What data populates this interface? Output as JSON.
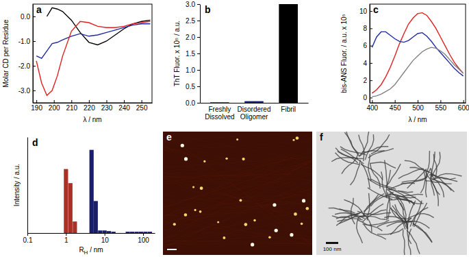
{
  "chart_data": [
    {
      "type": "line",
      "title": "a",
      "x_label": "λ / nm",
      "y_label": "Molar CD per Residue",
      "x": [
        190,
        193,
        196,
        199,
        202,
        205,
        210,
        215,
        220,
        225,
        230,
        235,
        240,
        245,
        250,
        255
      ],
      "series": [
        {
          "color": "#000000",
          "values": [
            null,
            null,
            0.0,
            0.35,
            0.3,
            0.2,
            -0.15,
            -0.65,
            -1.05,
            -1.15,
            -1.0,
            -0.75,
            -0.5,
            -0.3,
            -0.2,
            -0.15
          ]
        },
        {
          "color": "#1f2aa0",
          "values": [
            -1.6,
            -1.7,
            -1.4,
            -1.1,
            -1.05,
            -0.95,
            -0.8,
            -0.7,
            -0.8,
            -0.75,
            -0.65,
            -0.55,
            -0.45,
            -0.35,
            -0.3,
            -0.3
          ]
        },
        {
          "color": "#e02020",
          "values": [
            -1.8,
            -2.7,
            -3.2,
            -3.0,
            -2.4,
            -1.6,
            -0.6,
            -0.2,
            -0.25,
            -0.4,
            -0.45,
            -0.45,
            -0.4,
            -0.3,
            -0.25,
            -0.2
          ]
        }
      ],
      "xlim": [
        188,
        256
      ],
      "xticks": [
        190,
        200,
        210,
        220,
        230,
        240,
        250
      ],
      "ylim": [
        -3.5,
        0.5
      ],
      "yticks": [
        {
          "value": 0,
          "label": "0.0"
        },
        {
          "value": -1,
          "label": "-1.0"
        },
        {
          "value": -2,
          "label": "-2.0"
        },
        {
          "value": -3,
          "label": "-3.0"
        }
      ]
    },
    {
      "type": "bar",
      "title": "b",
      "y_label": "ThT Fluor. x 10⁵ / a.u.",
      "categories": [
        "Freshly Dissolved",
        "Disordered Oligomer",
        "Fibril"
      ],
      "values": [
        0.02,
        0.05,
        3.0
      ],
      "colors": [
        "#c0392b",
        "#1a237e",
        "#000000"
      ],
      "ylim": [
        0,
        3
      ],
      "yticks": [
        {
          "value": 0,
          "label": "0.0"
        },
        {
          "value": 0.5,
          "label": "0.5"
        },
        {
          "value": 1,
          "label": "1.0"
        },
        {
          "value": 1.5,
          "label": "1.5"
        },
        {
          "value": 2,
          "label": "2.0"
        },
        {
          "value": 2.5,
          "label": "2.5"
        },
        {
          "value": 3,
          "label": "3.0"
        }
      ]
    },
    {
      "type": "line",
      "title": "c",
      "x_label": "λ / nm",
      "y_label": "bis-ANS Fluor. / a.u. x 10⁵",
      "x": [
        400,
        410,
        420,
        430,
        440,
        450,
        460,
        470,
        480,
        490,
        500,
        510,
        520,
        530,
        540,
        550,
        560,
        570,
        580,
        590,
        600
      ],
      "series": [
        {
          "color": "#e02020",
          "values": [
            0.5,
            0.9,
            1.5,
            2.4,
            3.5,
            4.8,
            6.2,
            7.4,
            8.5,
            9.2,
            9.7,
            9.8,
            9.5,
            8.8,
            8.0,
            7.0,
            6.0,
            5.0,
            4.1,
            3.4,
            2.8
          ]
        },
        {
          "color": "#1f2aa0",
          "values": [
            5.8,
            7.0,
            7.6,
            7.6,
            7.2,
            6.8,
            6.5,
            6.4,
            6.6,
            7.0,
            7.4,
            7.5,
            7.1,
            6.5,
            5.8,
            5.2,
            4.6,
            4.0,
            3.4,
            2.9,
            2.5
          ]
        },
        {
          "color": "#808080",
          "values": [
            0.1,
            0.2,
            0.4,
            0.7,
            1.0,
            1.5,
            2.2,
            2.9,
            3.6,
            4.3,
            4.8,
            5.3,
            5.6,
            5.8,
            5.7,
            5.4,
            5.0,
            4.4,
            3.8,
            3.3,
            2.8
          ]
        }
      ],
      "xlim": [
        395,
        605
      ],
      "xticks": [
        400,
        450,
        500,
        550,
        600
      ],
      "ylim": [
        -0.6,
        10.8
      ],
      "yticks": [
        0,
        2,
        4,
        6,
        8,
        10
      ]
    },
    {
      "type": "bar",
      "title": "d",
      "log": "x",
      "tick_labels": "x",
      "x_label": "RH / nm",
      "y_label": "Intensity / a.u.",
      "x": [
        1.0,
        1.3,
        1.7,
        4.6,
        5.9,
        7.7,
        10,
        13,
        17,
        40,
        52,
        68,
        88,
        115,
        150
      ],
      "series": [
        {
          "color": "#a93226",
          "values": [
            50,
            39,
            9,
            null,
            null,
            null,
            null,
            null,
            null,
            null,
            null,
            null,
            null,
            null,
            null
          ]
        },
        {
          "color": "#1b1f6b",
          "values": [
            null,
            null,
            null,
            65,
            25,
            2,
            2,
            1.5,
            1,
            1,
            1,
            1,
            1,
            1,
            1
          ]
        }
      ],
      "xlim": [
        0.1,
        200
      ],
      "xticks": [
        0.1,
        1,
        10,
        100
      ],
      "ylim": [
        0,
        75
      ]
    },
    {
      "type": "image",
      "title": "e"
    },
    {
      "type": "image",
      "title": "f",
      "annotations": [
        "100 nm"
      ]
    }
  ]
}
